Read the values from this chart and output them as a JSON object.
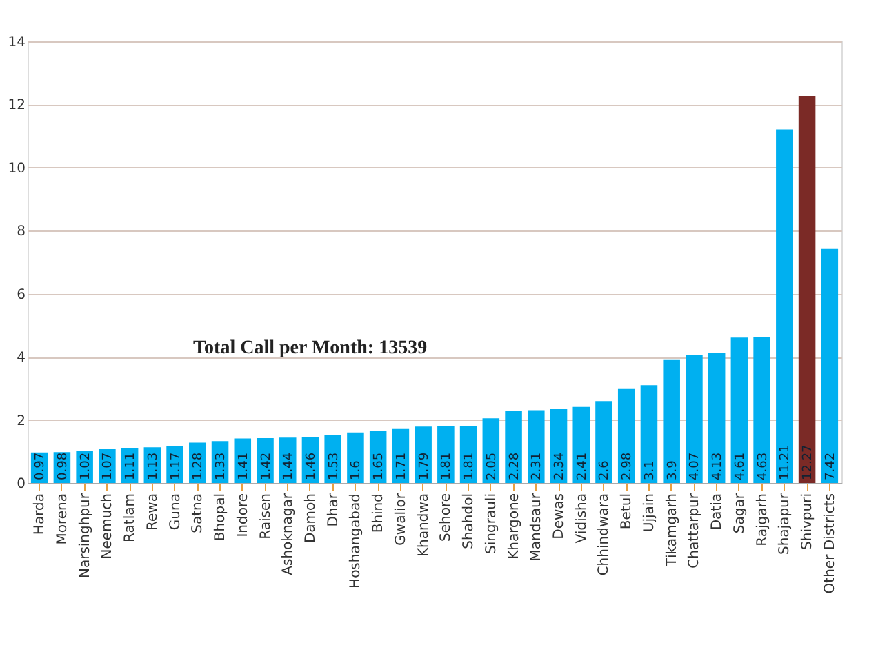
{
  "chart_data": {
    "type": "bar",
    "categories": [
      "Harda",
      "Morena",
      "Narsinghpur",
      "Neemuch",
      "Ratlam",
      "Rewa",
      "Guna",
      "Satna",
      "Bhopal",
      "Indore",
      "Raisen",
      "Ashoknagar",
      "Damoh",
      "Dhar",
      "Hoshangabad",
      "Bhind",
      "Gwalior",
      "Khandwa",
      "Sehore",
      "Shahdol",
      "Singrauli",
      "Khargone",
      "Mandsaur",
      "Dewas",
      "Vidisha",
      "Chhindwara",
      "Betul",
      "Ujjain",
      "Tikamgarh",
      "Chattarpur",
      "Datia",
      "Sagar",
      "Rajgarh",
      "Shajapur",
      "Shivpuri",
      "Other Districts"
    ],
    "values": [
      0.97,
      0.98,
      1.02,
      1.07,
      1.11,
      1.13,
      1.17,
      1.28,
      1.33,
      1.41,
      1.42,
      1.44,
      1.46,
      1.53,
      1.6,
      1.65,
      1.71,
      1.79,
      1.81,
      1.81,
      2.05,
      2.28,
      2.31,
      2.34,
      2.41,
      2.6,
      2.98,
      3.1,
      3.9,
      4.07,
      4.13,
      4.61,
      4.63,
      11.21,
      12.27,
      7.42
    ],
    "colors": [
      "#00b0f0",
      "#00b0f0",
      "#00b0f0",
      "#00b0f0",
      "#00b0f0",
      "#00b0f0",
      "#00b0f0",
      "#00b0f0",
      "#00b0f0",
      "#00b0f0",
      "#00b0f0",
      "#00b0f0",
      "#00b0f0",
      "#00b0f0",
      "#00b0f0",
      "#00b0f0",
      "#00b0f0",
      "#00b0f0",
      "#00b0f0",
      "#00b0f0",
      "#00b0f0",
      "#00b0f0",
      "#00b0f0",
      "#00b0f0",
      "#00b0f0",
      "#00b0f0",
      "#00b0f0",
      "#00b0f0",
      "#00b0f0",
      "#00b0f0",
      "#00b0f0",
      "#00b0f0",
      "#00b0f0",
      "#00b0f0",
      "#7b2a26",
      "#00b0f0"
    ],
    "ylim": [
      0,
      14
    ],
    "yticks": [
      0,
      2,
      4,
      6,
      8,
      10,
      12,
      14
    ],
    "grid": "y",
    "data_labels": true,
    "annotations": [
      "Total Call per Month: 13539"
    ]
  }
}
